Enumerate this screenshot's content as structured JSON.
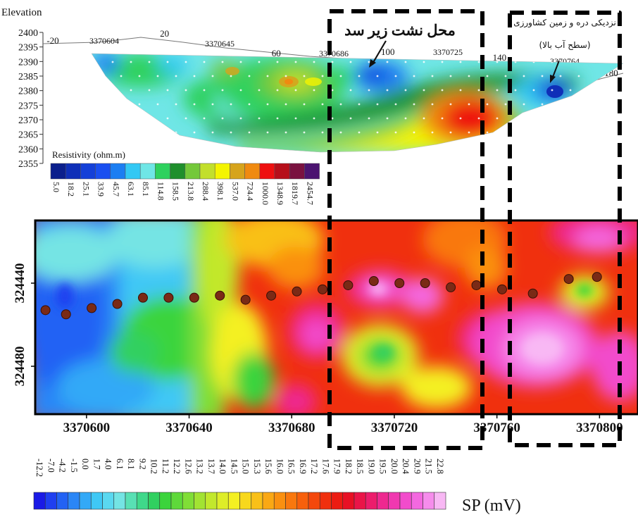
{
  "chart_data": [
    {
      "type": "heatmap",
      "title": "",
      "ylabel": "Elevation",
      "ylim": [
        2355,
        2400
      ],
      "yticks": [
        2400,
        2395,
        2390,
        2385,
        2380,
        2375,
        2370,
        2365,
        2360,
        2355
      ],
      "distance_ticks": [
        -20,
        20,
        60,
        100,
        140,
        180
      ],
      "easting_ticks": [
        "3370604",
        "3370645",
        "3370686",
        "3370725",
        "3370764"
      ],
      "colorbar_title": "Resistivity (ohm.m)",
      "colorbar_values": [
        "5.0",
        "18.2",
        "25.1",
        "33.9",
        "45.7",
        "63.1",
        "85.1",
        "114.8",
        "158.5",
        "213.8",
        "288.4",
        "398.1",
        "537.0",
        "724.4",
        "1000.0",
        "1348.9",
        "1819.7",
        "2454.7"
      ],
      "colorbar_colors": [
        "#0b1f8c",
        "#0f2fb8",
        "#1440d8",
        "#1a4ff0",
        "#1c7ef2",
        "#33c8f4",
        "#6fe6e6",
        "#2ed15e",
        "#1f8f2c",
        "#74c83a",
        "#c2df2c",
        "#f4f400",
        "#d6a41c",
        "#f08a10",
        "#ee1010",
        "#b60f1a",
        "#7a1240",
        "#4b1470"
      ],
      "annotations": [
        {
          "text": "محل نشت زیر سد",
          "points_to": "low-resistivity zone near 3370686–3370725"
        },
        {
          "text": "نزدیکی دره و زمین کشاورزی",
          "points_to": "near 3370764"
        },
        {
          "text": "(سطح آب بالا)",
          "points_to": "near 3370764"
        }
      ]
    },
    {
      "type": "heatmap",
      "title": "",
      "xlim": [
        3370580,
        3370815
      ],
      "xticks": [
        "3370600",
        "3370640",
        "3370680",
        "3370720",
        "3370760",
        "3370800"
      ],
      "yticks": [
        "324440",
        "324480"
      ],
      "colorbar_title": "SP (mV)",
      "colorbar_values": [
        "-12.2",
        "-7.0",
        "-4.2",
        "-1.5",
        "0.0",
        "1.7",
        "4.0",
        "6.1",
        "8.1",
        "9.2",
        "10.2",
        "11.2",
        "12.2",
        "12.6",
        "13.2",
        "13.7",
        "14.0",
        "14.5",
        "15.0",
        "15.3",
        "15.6",
        "16.0",
        "16.5",
        "16.9",
        "17.2",
        "17.6",
        "17.9",
        "18.2",
        "18.5",
        "19.0",
        "19.5",
        "20.0",
        "20.4",
        "20.9",
        "21.5",
        "22.8"
      ],
      "colorbar_colors": [
        "#1a1ae6",
        "#1f3ff0",
        "#2262f4",
        "#2a86f6",
        "#33a9f7",
        "#3fc8f5",
        "#5ad8f0",
        "#74e4e4",
        "#58e0b4",
        "#3fd88a",
        "#30d060",
        "#3bd43c",
        "#5ed93a",
        "#80de36",
        "#a2e332",
        "#c2e82c",
        "#deed28",
        "#f4f022",
        "#f8d81c",
        "#f9c018",
        "#faa814",
        "#fa9010",
        "#f9780e",
        "#f7600c",
        "#f4480c",
        "#f0300e",
        "#ec1c12",
        "#e81024",
        "#ea1448",
        "#ec1c6c",
        "#ee2890",
        "#f038b0",
        "#f24ccc",
        "#f468e0",
        "#f68cec",
        "#f8b8f4"
      ],
      "profile_points": [
        {
          "x": 3370584,
          "y": 324453
        },
        {
          "x": 3370592,
          "y": 324455
        },
        {
          "x": 3370602,
          "y": 324452
        },
        {
          "x": 3370612,
          "y": 324450
        },
        {
          "x": 3370622,
          "y": 324447
        },
        {
          "x": 3370632,
          "y": 324447
        },
        {
          "x": 3370642,
          "y": 324447
        },
        {
          "x": 3370652,
          "y": 324446
        },
        {
          "x": 3370662,
          "y": 324448
        },
        {
          "x": 3370672,
          "y": 324446
        },
        {
          "x": 3370682,
          "y": 324444
        },
        {
          "x": 3370692,
          "y": 324443
        },
        {
          "x": 3370702,
          "y": 324441
        },
        {
          "x": 3370712,
          "y": 324439
        },
        {
          "x": 3370722,
          "y": 324440
        },
        {
          "x": 3370732,
          "y": 324440
        },
        {
          "x": 3370742,
          "y": 324442
        },
        {
          "x": 3370752,
          "y": 324441
        },
        {
          "x": 3370762,
          "y": 324443
        },
        {
          "x": 3370774,
          "y": 324445
        },
        {
          "x": 3370788,
          "y": 324438
        },
        {
          "x": 3370799,
          "y": 324437
        }
      ]
    }
  ]
}
